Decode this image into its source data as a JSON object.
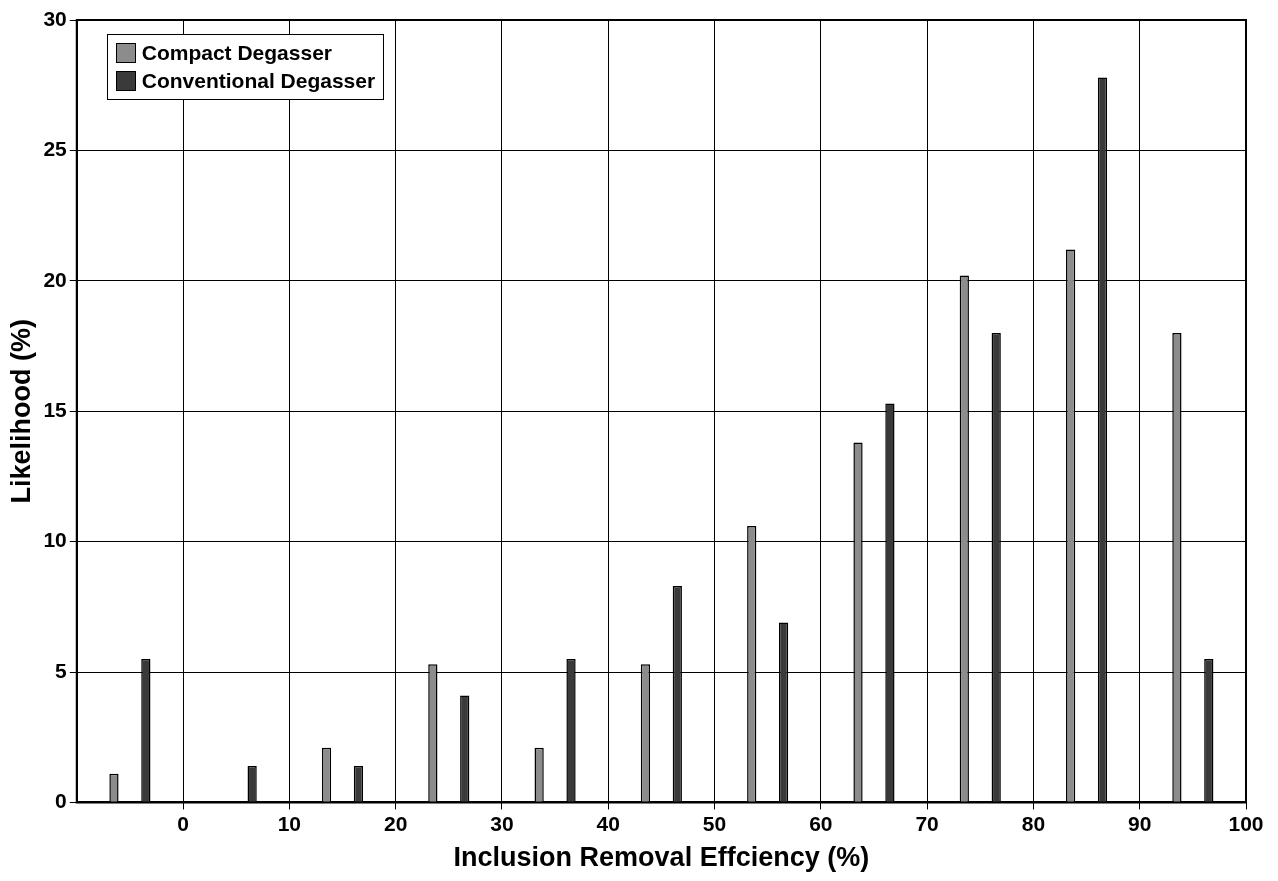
{
  "chart_data": {
    "type": "bar",
    "xlabel": "Inclusion Removal Effciency (%)",
    "ylabel": "Likelihood (%)",
    "xlim": [
      -10,
      100
    ],
    "xticks": [
      0,
      10,
      20,
      30,
      40,
      50,
      60,
      70,
      80,
      90,
      100
    ],
    "ylim": [
      0,
      30
    ],
    "yticks": [
      0,
      5,
      10,
      15,
      20,
      25,
      30
    ],
    "series": [
      {
        "name": "Compact Degasser",
        "color": "#8c8c8c",
        "x": [
          -6.5,
          3.5,
          13.5,
          23.5,
          33.5,
          43.5,
          53.5,
          63.5,
          73.5,
          83.5,
          93.5
        ],
        "values": [
          1.1,
          null,
          2.1,
          5.3,
          2.1,
          5.3,
          10.6,
          13.8,
          20.2,
          21.2,
          18.0
        ]
      },
      {
        "name": "Conventional Degasser",
        "color": "#3a3a3a",
        "x": [
          -3.5,
          6.5,
          16.5,
          26.5,
          36.5,
          46.5,
          56.5,
          66.5,
          76.5,
          86.5,
          96.5
        ],
        "values": [
          5.5,
          1.4,
          1.4,
          4.1,
          5.5,
          8.3,
          6.9,
          15.3,
          18.0,
          27.8,
          5.5
        ]
      }
    ],
    "grid": true,
    "legend": "top left"
  }
}
